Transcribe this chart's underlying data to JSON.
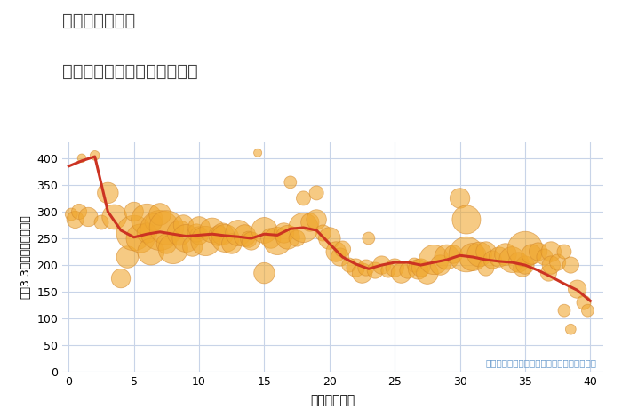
{
  "title_line1": "東京都越中島駅",
  "title_line2": "築年数別中古マンション価格",
  "xlabel": "築年数（年）",
  "ylabel": "坪（3.3㎡）単価（万円）",
  "annotation": "円の大きさは、取引のあった物件面積を示す",
  "xlim": [
    -0.5,
    41
  ],
  "ylim": [
    0,
    430
  ],
  "yticks": [
    0,
    50,
    100,
    150,
    200,
    250,
    300,
    350,
    400
  ],
  "xticks": [
    0,
    5,
    10,
    15,
    20,
    25,
    30,
    35,
    40
  ],
  "background_color": "#ffffff",
  "grid_color": "#c8d4e8",
  "scatter_color": "#F0A830",
  "scatter_alpha": 0.6,
  "scatter_edge_color": "#D4882A",
  "line_color": "#cc3322",
  "line_width": 2.2,
  "scatter_points": [
    [
      0.2,
      295,
      130
    ],
    [
      0.5,
      285,
      180
    ],
    [
      0.8,
      300,
      160
    ],
    [
      1.0,
      400,
      90
    ],
    [
      1.5,
      290,
      200
    ],
    [
      2.0,
      405,
      100
    ],
    [
      2.5,
      280,
      150
    ],
    [
      3.0,
      335,
      220
    ],
    [
      3.5,
      290,
      260
    ],
    [
      4.0,
      175,
      200
    ],
    [
      4.5,
      215,
      230
    ],
    [
      5.0,
      260,
      370
    ],
    [
      5.0,
      300,
      200
    ],
    [
      5.5,
      250,
      300
    ],
    [
      6.0,
      285,
      330
    ],
    [
      6.0,
      260,
      210
    ],
    [
      6.3,
      225,
      280
    ],
    [
      6.5,
      280,
      180
    ],
    [
      7.0,
      265,
      420
    ],
    [
      7.0,
      295,
      230
    ],
    [
      7.5,
      270,
      360
    ],
    [
      7.5,
      240,
      210
    ],
    [
      8.0,
      230,
      310
    ],
    [
      8.5,
      260,
      260
    ],
    [
      8.8,
      275,
      210
    ],
    [
      9.0,
      250,
      290
    ],
    [
      9.5,
      235,
      210
    ],
    [
      9.8,
      260,
      190
    ],
    [
      10.0,
      255,
      190
    ],
    [
      10.0,
      270,
      230
    ],
    [
      10.5,
      245,
      310
    ],
    [
      11.0,
      265,
      260
    ],
    [
      11.5,
      255,
      210
    ],
    [
      11.8,
      258,
      230
    ],
    [
      12.0,
      250,
      290
    ],
    [
      12.5,
      240,
      210
    ],
    [
      13.0,
      260,
      270
    ],
    [
      13.5,
      255,
      230
    ],
    [
      13.8,
      248,
      170
    ],
    [
      14.0,
      245,
      190
    ],
    [
      14.5,
      410,
      85
    ],
    [
      15.0,
      265,
      270
    ],
    [
      15.0,
      185,
      220
    ],
    [
      15.5,
      250,
      210
    ],
    [
      16.0,
      245,
      290
    ],
    [
      16.5,
      260,
      210
    ],
    [
      16.8,
      252,
      250
    ],
    [
      17.0,
      355,
      130
    ],
    [
      17.5,
      250,
      170
    ],
    [
      18.0,
      270,
      310
    ],
    [
      18.0,
      325,
      150
    ],
    [
      18.5,
      280,
      190
    ],
    [
      19.0,
      335,
      150
    ],
    [
      19.0,
      285,
      210
    ],
    [
      19.5,
      260,
      170
    ],
    [
      20.0,
      250,
      230
    ],
    [
      20.5,
      225,
      210
    ],
    [
      20.8,
      215,
      190
    ],
    [
      21.0,
      230,
      170
    ],
    [
      21.5,
      200,
      150
    ],
    [
      22.0,
      195,
      190
    ],
    [
      22.5,
      185,
      210
    ],
    [
      22.8,
      195,
      170
    ],
    [
      23.0,
      250,
      130
    ],
    [
      23.5,
      190,
      170
    ],
    [
      24.0,
      200,
      190
    ],
    [
      24.5,
      190,
      150
    ],
    [
      25.0,
      195,
      190
    ],
    [
      25.5,
      185,
      210
    ],
    [
      26.0,
      190,
      170
    ],
    [
      26.5,
      200,
      150
    ],
    [
      26.8,
      192,
      210
    ],
    [
      27.0,
      195,
      190
    ],
    [
      27.5,
      185,
      230
    ],
    [
      28.0,
      210,
      310
    ],
    [
      28.5,
      200,
      210
    ],
    [
      29.0,
      215,
      260
    ],
    [
      29.5,
      220,
      190
    ],
    [
      30.0,
      325,
      210
    ],
    [
      30.5,
      220,
      370
    ],
    [
      30.5,
      285,
      300
    ],
    [
      31.0,
      215,
      290
    ],
    [
      31.5,
      220,
      260
    ],
    [
      32.0,
      225,
      210
    ],
    [
      32.0,
      195,
      170
    ],
    [
      32.5,
      210,
      190
    ],
    [
      33.0,
      215,
      210
    ],
    [
      33.5,
      220,
      230
    ],
    [
      34.0,
      210,
      270
    ],
    [
      34.5,
      205,
      210
    ],
    [
      34.8,
      195,
      190
    ],
    [
      35.0,
      200,
      190
    ],
    [
      35.0,
      230,
      370
    ],
    [
      35.5,
      220,
      210
    ],
    [
      36.0,
      225,
      190
    ],
    [
      36.5,
      215,
      170
    ],
    [
      36.8,
      185,
      170
    ],
    [
      37.0,
      225,
      210
    ],
    [
      37.0,
      200,
      190
    ],
    [
      37.5,
      205,
      170
    ],
    [
      38.0,
      225,
      150
    ],
    [
      38.0,
      115,
      130
    ],
    [
      38.5,
      200,
      170
    ],
    [
      38.5,
      80,
      110
    ],
    [
      39.0,
      155,
      190
    ],
    [
      39.5,
      130,
      150
    ],
    [
      39.8,
      115,
      130
    ]
  ],
  "line_points": [
    [
      0,
      385
    ],
    [
      1,
      395
    ],
    [
      2,
      403
    ],
    [
      3,
      300
    ],
    [
      4,
      265
    ],
    [
      5,
      252
    ],
    [
      6,
      258
    ],
    [
      7,
      262
    ],
    [
      8,
      258
    ],
    [
      9,
      254
    ],
    [
      10,
      256
    ],
    [
      11,
      258
    ],
    [
      12,
      255
    ],
    [
      13,
      253
    ],
    [
      14,
      250
    ],
    [
      15,
      258
    ],
    [
      16,
      256
    ],
    [
      17,
      268
    ],
    [
      18,
      270
    ],
    [
      19,
      265
    ],
    [
      20,
      240
    ],
    [
      21,
      215
    ],
    [
      22,
      202
    ],
    [
      23,
      193
    ],
    [
      24,
      200
    ],
    [
      25,
      205
    ],
    [
      26,
      205
    ],
    [
      27,
      200
    ],
    [
      28,
      205
    ],
    [
      29,
      210
    ],
    [
      30,
      218
    ],
    [
      31,
      215
    ],
    [
      32,
      210
    ],
    [
      33,
      207
    ],
    [
      34,
      205
    ],
    [
      35,
      200
    ],
    [
      36,
      190
    ],
    [
      37,
      178
    ],
    [
      38,
      165
    ],
    [
      39,
      153
    ],
    [
      40,
      133
    ]
  ]
}
